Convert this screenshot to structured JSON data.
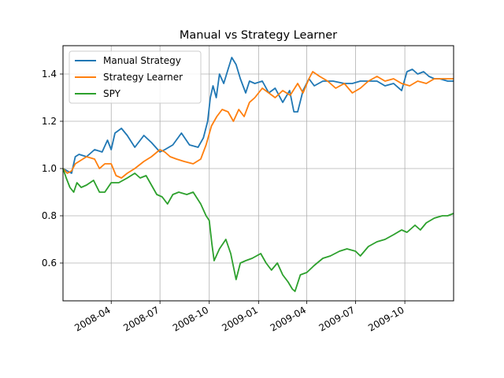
{
  "chart_data": {
    "type": "line",
    "title": "Manual vs Strategy Learner",
    "xlabel": "",
    "ylabel": "",
    "x_range": [
      "2008-01-02",
      "2009-12-31"
    ],
    "ylim": [
      0.44,
      1.52
    ],
    "grid": true,
    "legend_position": "top-left",
    "x_ticks": [
      {
        "date": "2008-04-01",
        "label": "2008-04"
      },
      {
        "date": "2008-07-01",
        "label": "2008-07"
      },
      {
        "date": "2008-10-01",
        "label": "2008-10"
      },
      {
        "date": "2009-01-01",
        "label": "2009-01"
      },
      {
        "date": "2009-04-01",
        "label": "2009-04"
      },
      {
        "date": "2009-07-01",
        "label": "2009-07"
      },
      {
        "date": "2009-10-01",
        "label": "2009-10"
      }
    ],
    "y_ticks": [
      0.6,
      0.8,
      1.0,
      1.2,
      1.4
    ],
    "y_tick_labels": [
      "0.6",
      "0.8",
      "1.0",
      "1.2",
      "1.4"
    ],
    "series": [
      {
        "name": "Manual Strategy",
        "color": "#1f77b4",
        "points": [
          [
            "2008-01-02",
            1.0
          ],
          [
            "2008-01-10",
            0.99
          ],
          [
            "2008-01-18",
            0.98
          ],
          [
            "2008-01-25",
            1.05
          ],
          [
            "2008-02-01",
            1.06
          ],
          [
            "2008-02-15",
            1.05
          ],
          [
            "2008-03-01",
            1.08
          ],
          [
            "2008-03-15",
            1.07
          ],
          [
            "2008-03-25",
            1.12
          ],
          [
            "2008-04-01",
            1.08
          ],
          [
            "2008-04-08",
            1.15
          ],
          [
            "2008-04-20",
            1.17
          ],
          [
            "2008-05-01",
            1.14
          ],
          [
            "2008-05-15",
            1.09
          ],
          [
            "2008-06-01",
            1.14
          ],
          [
            "2008-06-15",
            1.11
          ],
          [
            "2008-07-01",
            1.07
          ],
          [
            "2008-07-10",
            1.08
          ],
          [
            "2008-07-25",
            1.1
          ],
          [
            "2008-08-10",
            1.15
          ],
          [
            "2008-08-25",
            1.1
          ],
          [
            "2008-09-10",
            1.09
          ],
          [
            "2008-09-20",
            1.13
          ],
          [
            "2008-09-28",
            1.2
          ],
          [
            "2008-10-03",
            1.3
          ],
          [
            "2008-10-08",
            1.35
          ],
          [
            "2008-10-14",
            1.3
          ],
          [
            "2008-10-20",
            1.4
          ],
          [
            "2008-10-28",
            1.36
          ],
          [
            "2008-11-05",
            1.42
          ],
          [
            "2008-11-12",
            1.47
          ],
          [
            "2008-11-20",
            1.44
          ],
          [
            "2008-11-28",
            1.38
          ],
          [
            "2008-12-08",
            1.32
          ],
          [
            "2008-12-15",
            1.37
          ],
          [
            "2008-12-25",
            1.36
          ],
          [
            "2009-01-08",
            1.37
          ],
          [
            "2009-01-20",
            1.32
          ],
          [
            "2009-02-01",
            1.34
          ],
          [
            "2009-02-15",
            1.28
          ],
          [
            "2009-02-28",
            1.33
          ],
          [
            "2009-03-08",
            1.24
          ],
          [
            "2009-03-15",
            1.24
          ],
          [
            "2009-03-25",
            1.33
          ],
          [
            "2009-04-05",
            1.38
          ],
          [
            "2009-04-15",
            1.35
          ],
          [
            "2009-05-01",
            1.37
          ],
          [
            "2009-05-20",
            1.37
          ],
          [
            "2009-06-10",
            1.36
          ],
          [
            "2009-06-25",
            1.36
          ],
          [
            "2009-07-10",
            1.37
          ],
          [
            "2009-07-25",
            1.37
          ],
          [
            "2009-08-10",
            1.37
          ],
          [
            "2009-08-25",
            1.35
          ],
          [
            "2009-09-10",
            1.36
          ],
          [
            "2009-09-25",
            1.33
          ],
          [
            "2009-10-05",
            1.41
          ],
          [
            "2009-10-15",
            1.42
          ],
          [
            "2009-10-25",
            1.4
          ],
          [
            "2009-11-05",
            1.41
          ],
          [
            "2009-11-15",
            1.39
          ],
          [
            "2009-11-25",
            1.38
          ],
          [
            "2009-12-05",
            1.38
          ],
          [
            "2009-12-20",
            1.37
          ],
          [
            "2009-12-31",
            1.37
          ]
        ]
      },
      {
        "name": "Strategy Learner",
        "color": "#ff7f0e",
        "points": [
          [
            "2008-01-02",
            1.0
          ],
          [
            "2008-01-10",
            0.98
          ],
          [
            "2008-01-18",
            0.99
          ],
          [
            "2008-01-25",
            1.02
          ],
          [
            "2008-02-01",
            1.03
          ],
          [
            "2008-02-15",
            1.05
          ],
          [
            "2008-03-01",
            1.04
          ],
          [
            "2008-03-10",
            1.0
          ],
          [
            "2008-03-20",
            1.02
          ],
          [
            "2008-04-01",
            1.02
          ],
          [
            "2008-04-10",
            0.97
          ],
          [
            "2008-04-20",
            0.96
          ],
          [
            "2008-05-01",
            0.98
          ],
          [
            "2008-05-15",
            1.0
          ],
          [
            "2008-06-01",
            1.03
          ],
          [
            "2008-06-15",
            1.05
          ],
          [
            "2008-07-01",
            1.08
          ],
          [
            "2008-07-10",
            1.07
          ],
          [
            "2008-07-20",
            1.05
          ],
          [
            "2008-08-01",
            1.04
          ],
          [
            "2008-08-15",
            1.03
          ],
          [
            "2008-09-01",
            1.02
          ],
          [
            "2008-09-15",
            1.04
          ],
          [
            "2008-09-25",
            1.1
          ],
          [
            "2008-10-05",
            1.18
          ],
          [
            "2008-10-15",
            1.22
          ],
          [
            "2008-10-25",
            1.25
          ],
          [
            "2008-11-05",
            1.24
          ],
          [
            "2008-11-15",
            1.2
          ],
          [
            "2008-11-25",
            1.25
          ],
          [
            "2008-12-05",
            1.22
          ],
          [
            "2008-12-15",
            1.28
          ],
          [
            "2008-12-25",
            1.3
          ],
          [
            "2009-01-08",
            1.34
          ],
          [
            "2009-01-20",
            1.32
          ],
          [
            "2009-02-01",
            1.3
          ],
          [
            "2009-02-15",
            1.33
          ],
          [
            "2009-03-01",
            1.31
          ],
          [
            "2009-03-15",
            1.36
          ],
          [
            "2009-03-25",
            1.32
          ],
          [
            "2009-04-05",
            1.38
          ],
          [
            "2009-04-12",
            1.41
          ],
          [
            "2009-04-25",
            1.39
          ],
          [
            "2009-05-10",
            1.37
          ],
          [
            "2009-05-25",
            1.34
          ],
          [
            "2009-06-10",
            1.36
          ],
          [
            "2009-06-25",
            1.32
          ],
          [
            "2009-07-10",
            1.34
          ],
          [
            "2009-07-25",
            1.37
          ],
          [
            "2009-08-10",
            1.39
          ],
          [
            "2009-08-25",
            1.37
          ],
          [
            "2009-09-10",
            1.38
          ],
          [
            "2009-09-25",
            1.36
          ],
          [
            "2009-10-10",
            1.35
          ],
          [
            "2009-10-25",
            1.37
          ],
          [
            "2009-11-10",
            1.36
          ],
          [
            "2009-11-25",
            1.38
          ],
          [
            "2009-12-10",
            1.38
          ],
          [
            "2009-12-31",
            1.38
          ]
        ]
      },
      {
        "name": "SPY",
        "color": "#2ca02c",
        "points": [
          [
            "2008-01-02",
            1.0
          ],
          [
            "2008-01-08",
            0.96
          ],
          [
            "2008-01-15",
            0.92
          ],
          [
            "2008-01-22",
            0.9
          ],
          [
            "2008-01-28",
            0.94
          ],
          [
            "2008-02-05",
            0.92
          ],
          [
            "2008-02-15",
            0.93
          ],
          [
            "2008-02-28",
            0.95
          ],
          [
            "2008-03-10",
            0.9
          ],
          [
            "2008-03-20",
            0.9
          ],
          [
            "2008-04-01",
            0.94
          ],
          [
            "2008-04-15",
            0.94
          ],
          [
            "2008-05-01",
            0.96
          ],
          [
            "2008-05-15",
            0.98
          ],
          [
            "2008-05-25",
            0.96
          ],
          [
            "2008-06-05",
            0.97
          ],
          [
            "2008-06-15",
            0.93
          ],
          [
            "2008-06-25",
            0.89
          ],
          [
            "2008-07-05",
            0.88
          ],
          [
            "2008-07-15",
            0.85
          ],
          [
            "2008-07-25",
            0.89
          ],
          [
            "2008-08-05",
            0.9
          ],
          [
            "2008-08-20",
            0.89
          ],
          [
            "2008-09-01",
            0.9
          ],
          [
            "2008-09-15",
            0.85
          ],
          [
            "2008-09-25",
            0.8
          ],
          [
            "2008-10-01",
            0.78
          ],
          [
            "2008-10-06",
            0.68
          ],
          [
            "2008-10-10",
            0.61
          ],
          [
            "2008-10-20",
            0.66
          ],
          [
            "2008-11-01",
            0.7
          ],
          [
            "2008-11-10",
            0.64
          ],
          [
            "2008-11-20",
            0.53
          ],
          [
            "2008-11-28",
            0.6
          ],
          [
            "2008-12-08",
            0.61
          ],
          [
            "2008-12-20",
            0.62
          ],
          [
            "2009-01-05",
            0.64
          ],
          [
            "2009-01-15",
            0.6
          ],
          [
            "2009-01-25",
            0.57
          ],
          [
            "2009-02-05",
            0.6
          ],
          [
            "2009-02-15",
            0.55
          ],
          [
            "2009-02-25",
            0.52
          ],
          [
            "2009-03-05",
            0.49
          ],
          [
            "2009-03-10",
            0.48
          ],
          [
            "2009-03-20",
            0.55
          ],
          [
            "2009-04-01",
            0.56
          ],
          [
            "2009-04-15",
            0.59
          ],
          [
            "2009-05-01",
            0.62
          ],
          [
            "2009-05-15",
            0.63
          ],
          [
            "2009-06-01",
            0.65
          ],
          [
            "2009-06-15",
            0.66
          ],
          [
            "2009-07-01",
            0.65
          ],
          [
            "2009-07-10",
            0.63
          ],
          [
            "2009-07-25",
            0.67
          ],
          [
            "2009-08-10",
            0.69
          ],
          [
            "2009-08-25",
            0.7
          ],
          [
            "2009-09-10",
            0.72
          ],
          [
            "2009-09-25",
            0.74
          ],
          [
            "2009-10-05",
            0.73
          ],
          [
            "2009-10-20",
            0.76
          ],
          [
            "2009-10-30",
            0.74
          ],
          [
            "2009-11-10",
            0.77
          ],
          [
            "2009-11-25",
            0.79
          ],
          [
            "2009-12-10",
            0.8
          ],
          [
            "2009-12-20",
            0.8
          ],
          [
            "2009-12-31",
            0.81
          ]
        ]
      }
    ]
  }
}
